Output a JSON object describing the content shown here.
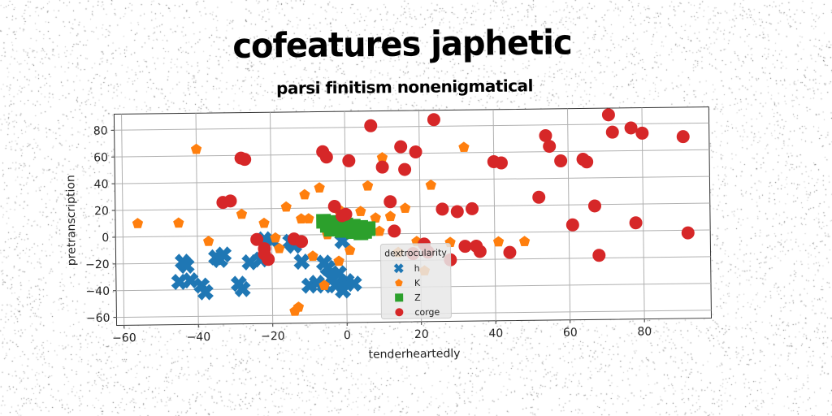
{
  "chart_data": {
    "type": "scatter",
    "title": "cofeatures japhetic",
    "subtitle": "parsi finitism nonenigmatical",
    "xlabel": "tenderheartedly",
    "ylabel": "pretranscription",
    "xlim": [
      -62,
      98
    ],
    "ylim": [
      -66,
      92
    ],
    "xticks": [
      -60,
      -40,
      -20,
      0,
      20,
      40,
      60,
      80
    ],
    "yticks": [
      -60,
      -40,
      -20,
      0,
      20,
      40,
      60,
      80
    ],
    "grid": true,
    "legend": {
      "title": "dextrocularity",
      "placement": "lower-center"
    },
    "series": [
      {
        "name": "h",
        "marker": "x",
        "color": "#1f77b4",
        "points": [
          [
            -44,
            -19
          ],
          [
            -43,
            -22
          ],
          [
            -45,
            -34
          ],
          [
            -42,
            -33
          ],
          [
            -39,
            -37
          ],
          [
            -38,
            -42
          ],
          [
            -35,
            -16
          ],
          [
            -34,
            -18
          ],
          [
            -33,
            -14
          ],
          [
            -28,
            -40
          ],
          [
            -29,
            -36
          ],
          [
            -26,
            -20
          ],
          [
            -23,
            -18
          ],
          [
            -22,
            -3
          ],
          [
            -20,
            -4
          ],
          [
            -15,
            -5
          ],
          [
            -14,
            -8
          ],
          [
            -12,
            -20
          ],
          [
            -10,
            -38
          ],
          [
            -8,
            -36
          ],
          [
            -6,
            -21
          ],
          [
            -5,
            -25
          ],
          [
            -4,
            -33
          ],
          [
            -3,
            -38
          ],
          [
            -2,
            -29
          ],
          [
            -1,
            -42
          ],
          [
            0,
            -35
          ],
          [
            2,
            -37
          ],
          [
            -6,
            -38
          ],
          [
            -1,
            -5
          ]
        ]
      },
      {
        "name": "K",
        "marker": "pentagon",
        "color": "#ff7f0e",
        "points": [
          [
            -56,
            10
          ],
          [
            -45,
            10
          ],
          [
            -40,
            65
          ],
          [
            -37,
            -4
          ],
          [
            -28,
            16
          ],
          [
            -22,
            9
          ],
          [
            -19,
            -2
          ],
          [
            -16,
            21
          ],
          [
            -14,
            -57
          ],
          [
            -13,
            -54
          ],
          [
            -11,
            30
          ],
          [
            -10,
            12
          ],
          [
            -9,
            -16
          ],
          [
            -7,
            35
          ],
          [
            -6,
            -38
          ],
          [
            -5,
            0
          ],
          [
            -2,
            19
          ],
          [
            1,
            -12
          ],
          [
            4,
            17
          ],
          [
            6,
            36
          ],
          [
            8,
            12
          ],
          [
            10,
            57
          ],
          [
            12,
            13
          ],
          [
            14,
            -14
          ],
          [
            16,
            19
          ],
          [
            19,
            -6
          ],
          [
            21,
            -28
          ],
          [
            23,
            36
          ],
          [
            28,
            -7
          ],
          [
            32,
            64
          ],
          [
            41,
            -7
          ],
          [
            48,
            -7
          ],
          [
            -18,
            -10
          ],
          [
            -12,
            12
          ],
          [
            -2,
            -20
          ],
          [
            9,
            2
          ]
        ]
      },
      {
        "name": "Z",
        "marker": "square",
        "color": "#2ca02c",
        "points": [
          [
            -6,
            10
          ],
          [
            -4,
            9
          ],
          [
            -2,
            8
          ],
          [
            0,
            7
          ],
          [
            2,
            6
          ],
          [
            4,
            5
          ],
          [
            6,
            4
          ],
          [
            -5,
            7
          ],
          [
            -3,
            6
          ],
          [
            -1,
            5
          ],
          [
            1,
            4
          ],
          [
            3,
            3
          ],
          [
            5,
            2
          ],
          [
            -4,
            4
          ],
          [
            -1,
            3
          ],
          [
            2,
            2
          ],
          [
            4,
            1
          ]
        ]
      },
      {
        "name": "corge",
        "marker": "circle",
        "color": "#d62728",
        "points": [
          [
            -33,
            25
          ],
          [
            -31,
            26
          ],
          [
            -28,
            58
          ],
          [
            -27,
            57
          ],
          [
            -24,
            -3
          ],
          [
            -22,
            -10
          ],
          [
            -22,
            -14
          ],
          [
            -21,
            -18
          ],
          [
            -14,
            -3
          ],
          [
            -12,
            -5
          ],
          [
            -6,
            62
          ],
          [
            -5,
            58
          ],
          [
            -3,
            21
          ],
          [
            -1,
            14
          ],
          [
            0,
            15
          ],
          [
            1,
            55
          ],
          [
            7,
            81
          ],
          [
            10,
            50
          ],
          [
            12,
            24
          ],
          [
            15,
            65
          ],
          [
            16,
            48
          ],
          [
            19,
            61
          ],
          [
            21,
            -8
          ],
          [
            24,
            85
          ],
          [
            26,
            18
          ],
          [
            28,
            -20
          ],
          [
            30,
            16
          ],
          [
            32,
            -10
          ],
          [
            34,
            18
          ],
          [
            36,
            -14
          ],
          [
            40,
            53
          ],
          [
            42,
            52
          ],
          [
            44,
            -15
          ],
          [
            52,
            26
          ],
          [
            54,
            72
          ],
          [
            55,
            64
          ],
          [
            58,
            53
          ],
          [
            61,
            5
          ],
          [
            64,
            54
          ],
          [
            65,
            52
          ],
          [
            67,
            19
          ],
          [
            68,
            -18
          ],
          [
            71,
            87
          ],
          [
            72,
            74
          ],
          [
            77,
            77
          ],
          [
            78,
            6
          ],
          [
            80,
            73
          ],
          [
            91,
            70
          ],
          [
            92,
            -2
          ],
          [
            13,
            2
          ],
          [
            18,
            -15
          ],
          [
            35,
            -10
          ],
          [
            22,
            -14
          ]
        ]
      }
    ]
  }
}
